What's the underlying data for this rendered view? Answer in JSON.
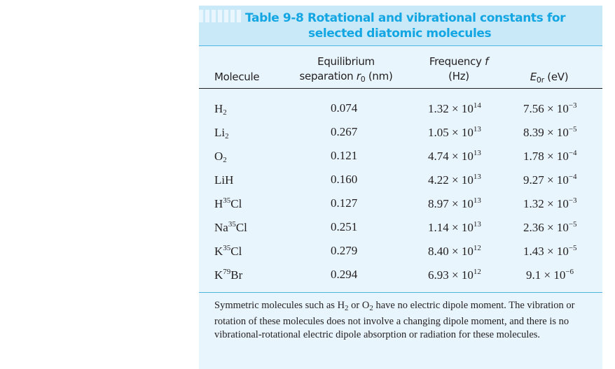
{
  "title": {
    "line1": "Table 9-8  Rotational and vibrational constants for",
    "line2": "selected diatomic molecules"
  },
  "colors": {
    "title": "#13a6e3",
    "header_band": "#c9e9f9",
    "body": "#e8f5fc",
    "rule": "#4fb4df"
  },
  "columns": {
    "molecule": "Molecule",
    "separation_line1": "Equilibrium",
    "separation_line2": "separation ",
    "separation_sym": "r",
    "separation_sub": "0",
    "separation_unit": " (nm)",
    "frequency_line1": "Frequency ",
    "frequency_sym": "f",
    "frequency_line2": "(Hz)",
    "energy_sym": "E",
    "energy_sub": "0r",
    "energy_unit": " (eV)"
  },
  "rows": [
    {
      "el1": "H",
      "sup": "",
      "sub": "2",
      "el2": "",
      "r0": "0.074",
      "f_m": "1.32",
      "f_e": "14",
      "e_m": "7.56",
      "e_e": "−3"
    },
    {
      "el1": "Li",
      "sup": "",
      "sub": "2",
      "el2": "",
      "r0": "0.267",
      "f_m": "1.05",
      "f_e": "13",
      "e_m": "8.39",
      "e_e": "−5"
    },
    {
      "el1": "O",
      "sup": "",
      "sub": "2",
      "el2": "",
      "r0": "0.121",
      "f_m": "4.74",
      "f_e": "13",
      "e_m": "1.78",
      "e_e": "−4"
    },
    {
      "el1": "LiH",
      "sup": "",
      "sub": "",
      "el2": "",
      "r0": "0.160",
      "f_m": "4.22",
      "f_e": "13",
      "e_m": "9.27",
      "e_e": "−4"
    },
    {
      "el1": "H",
      "sup": "35",
      "sub": "",
      "el2": "Cl",
      "r0": "0.127",
      "f_m": "8.97",
      "f_e": "13",
      "e_m": "1.32",
      "e_e": "−3"
    },
    {
      "el1": "Na",
      "sup": "35",
      "sub": "",
      "el2": "Cl",
      "r0": "0.251",
      "f_m": "1.14",
      "f_e": "13",
      "e_m": "2.36",
      "e_e": "−5"
    },
    {
      "el1": "K",
      "sup": "35",
      "sub": "",
      "el2": "Cl",
      "r0": "0.279",
      "f_m": "8.40",
      "f_e": "12",
      "e_m": "1.43",
      "e_e": "−5"
    },
    {
      "el1": "K",
      "sup": "79",
      "sub": "",
      "el2": "Br",
      "r0": "0.294",
      "f_m": "6.93",
      "f_e": "12",
      "e_m": "9.1",
      "e_e": "−6"
    }
  ],
  "times_ten": " × 10",
  "note": {
    "p1": "Symmetric molecules such as H",
    "s1": "2",
    "p2": " or O",
    "s2": "2",
    "p3": " have no electric dipole moment. The vibration or rotation of these molecules does not involve a changing dipole moment, and there is no vibrational-rotational electric dipole absorption or radiation for these molecules."
  }
}
